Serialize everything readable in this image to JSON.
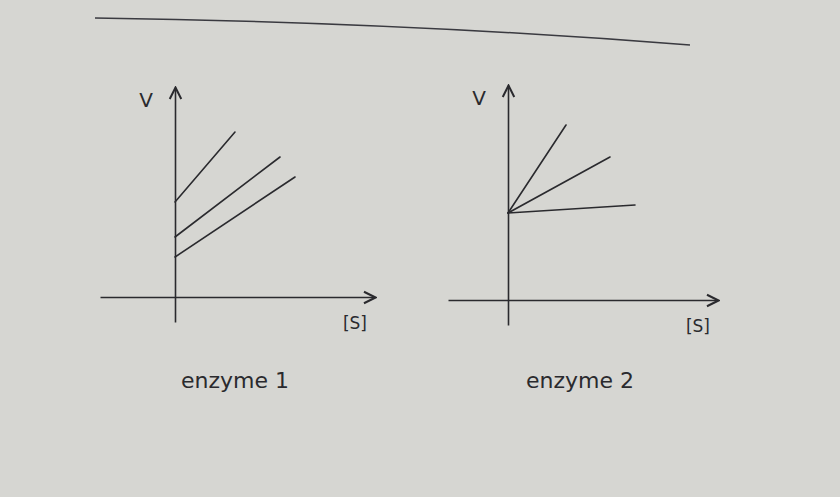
{
  "chart_data": [
    {
      "type": "line",
      "title": "enzyme 1",
      "x_label": "[S]",
      "y_label": "V",
      "xlim": [
        -1.5,
        4
      ],
      "ylim": [
        -0.5,
        4.2
      ],
      "tick_labels": false,
      "color": "#2a2a2e",
      "series": [
        {
          "x": [
            0,
            1.2
          ],
          "values": [
            1.9,
            3.3
          ]
        },
        {
          "x": [
            0,
            2.1
          ],
          "values": [
            1.2,
            2.8
          ]
        },
        {
          "x": [
            0,
            2.4
          ],
          "values": [
            0.8,
            2.4
          ]
        }
      ]
    },
    {
      "type": "line",
      "title": "enzyme 2",
      "x_label": "[S]",
      "y_label": "V",
      "xlim": [
        -1.2,
        4.2
      ],
      "ylim": [
        -0.5,
        4.3
      ],
      "tick_labels": false,
      "color": "#2a2a2e",
      "series": [
        {
          "x": [
            0,
            1.16
          ],
          "values": [
            1.74,
            3.5
          ]
        },
        {
          "x": [
            0,
            2.04
          ],
          "values": [
            1.74,
            2.86
          ]
        },
        {
          "x": [
            0,
            2.54
          ],
          "values": [
            1.74,
            1.9
          ]
        }
      ]
    }
  ]
}
